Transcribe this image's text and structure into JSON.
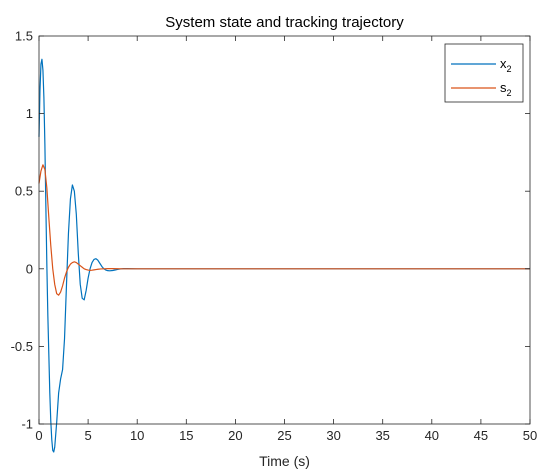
{
  "chart_data": {
    "type": "line",
    "title": "System state and tracking trajectory",
    "xlabel": "Time (s)",
    "ylabel": "",
    "xlim": [
      0,
      50
    ],
    "ylim": [
      -1,
      1.5
    ],
    "xticks": [
      0,
      5,
      10,
      15,
      20,
      25,
      30,
      35,
      40,
      45,
      50
    ],
    "yticks": [
      -1,
      -0.5,
      0,
      0.5,
      1,
      1.5
    ],
    "grid": false,
    "legend_position": "top-right",
    "series": [
      {
        "name": "x",
        "name_subscript": "2",
        "color": "#0072BD",
        "x": [
          0,
          0.1,
          0.2,
          0.3,
          0.4,
          0.5,
          0.6,
          0.7,
          0.8,
          0.9,
          1.0,
          1.1,
          1.2,
          1.3,
          1.4,
          1.5,
          1.6,
          1.8,
          2.0,
          2.2,
          2.4,
          2.6,
          2.8,
          3.0,
          3.2,
          3.4,
          3.6,
          3.8,
          4.0,
          4.2,
          4.4,
          4.6,
          4.8,
          5.0,
          5.2,
          5.4,
          5.6,
          5.8,
          6.0,
          6.2,
          6.4,
          6.6,
          6.8,
          7.0,
          7.2,
          7.5,
          7.8,
          8.0,
          8.3,
          8.6,
          9.0,
          9.5,
          10.0,
          11.0,
          12.0,
          15.0,
          20.0,
          30.0,
          40.0,
          50.0
        ],
        "y": [
          0.85,
          1.15,
          1.32,
          1.35,
          1.28,
          1.1,
          0.8,
          0.4,
          0.02,
          -0.3,
          -0.55,
          -0.8,
          -0.98,
          -1.1,
          -1.17,
          -1.18,
          -1.15,
          -0.99,
          -0.8,
          -0.71,
          -0.65,
          -0.45,
          -0.1,
          0.23,
          0.45,
          0.54,
          0.5,
          0.35,
          0.1,
          -0.1,
          -0.19,
          -0.2,
          -0.14,
          -0.06,
          0.0,
          0.04,
          0.06,
          0.065,
          0.055,
          0.035,
          0.015,
          0.0,
          -0.008,
          -0.012,
          -0.013,
          -0.011,
          -0.007,
          -0.004,
          -0.001,
          0.001,
          0.001,
          0.0005,
          0.0,
          0.0,
          0.0,
          0.0,
          0.0,
          0.0,
          0.0,
          0.0
        ]
      },
      {
        "name": "s",
        "name_subscript": "2",
        "color": "#D95319",
        "x": [
          0,
          0.2,
          0.4,
          0.6,
          0.8,
          1.0,
          1.2,
          1.4,
          1.6,
          1.8,
          2.0,
          2.2,
          2.4,
          2.6,
          2.8,
          3.0,
          3.2,
          3.4,
          3.6,
          3.8,
          4.0,
          4.2,
          4.4,
          4.6,
          4.8,
          5.0,
          5.2,
          5.4,
          5.6,
          5.8,
          6.0,
          6.3,
          6.6,
          7.0,
          7.5,
          8.0,
          8.5,
          9.0,
          10.0,
          12.0,
          15.0,
          20.0,
          30.0,
          40.0,
          50.0
        ],
        "y": [
          0.55,
          0.63,
          0.67,
          0.64,
          0.52,
          0.33,
          0.15,
          0.0,
          -0.1,
          -0.16,
          -0.17,
          -0.15,
          -0.11,
          -0.06,
          -0.02,
          0.01,
          0.03,
          0.04,
          0.045,
          0.04,
          0.03,
          0.02,
          0.01,
          0.0,
          -0.005,
          -0.008,
          -0.01,
          -0.009,
          -0.007,
          -0.005,
          -0.003,
          -0.001,
          0.0,
          0.001,
          0.001,
          0.0005,
          0.0,
          0.0,
          0.0,
          0.0,
          0.0,
          0.0,
          0.0,
          0.0,
          0.0
        ]
      }
    ]
  }
}
